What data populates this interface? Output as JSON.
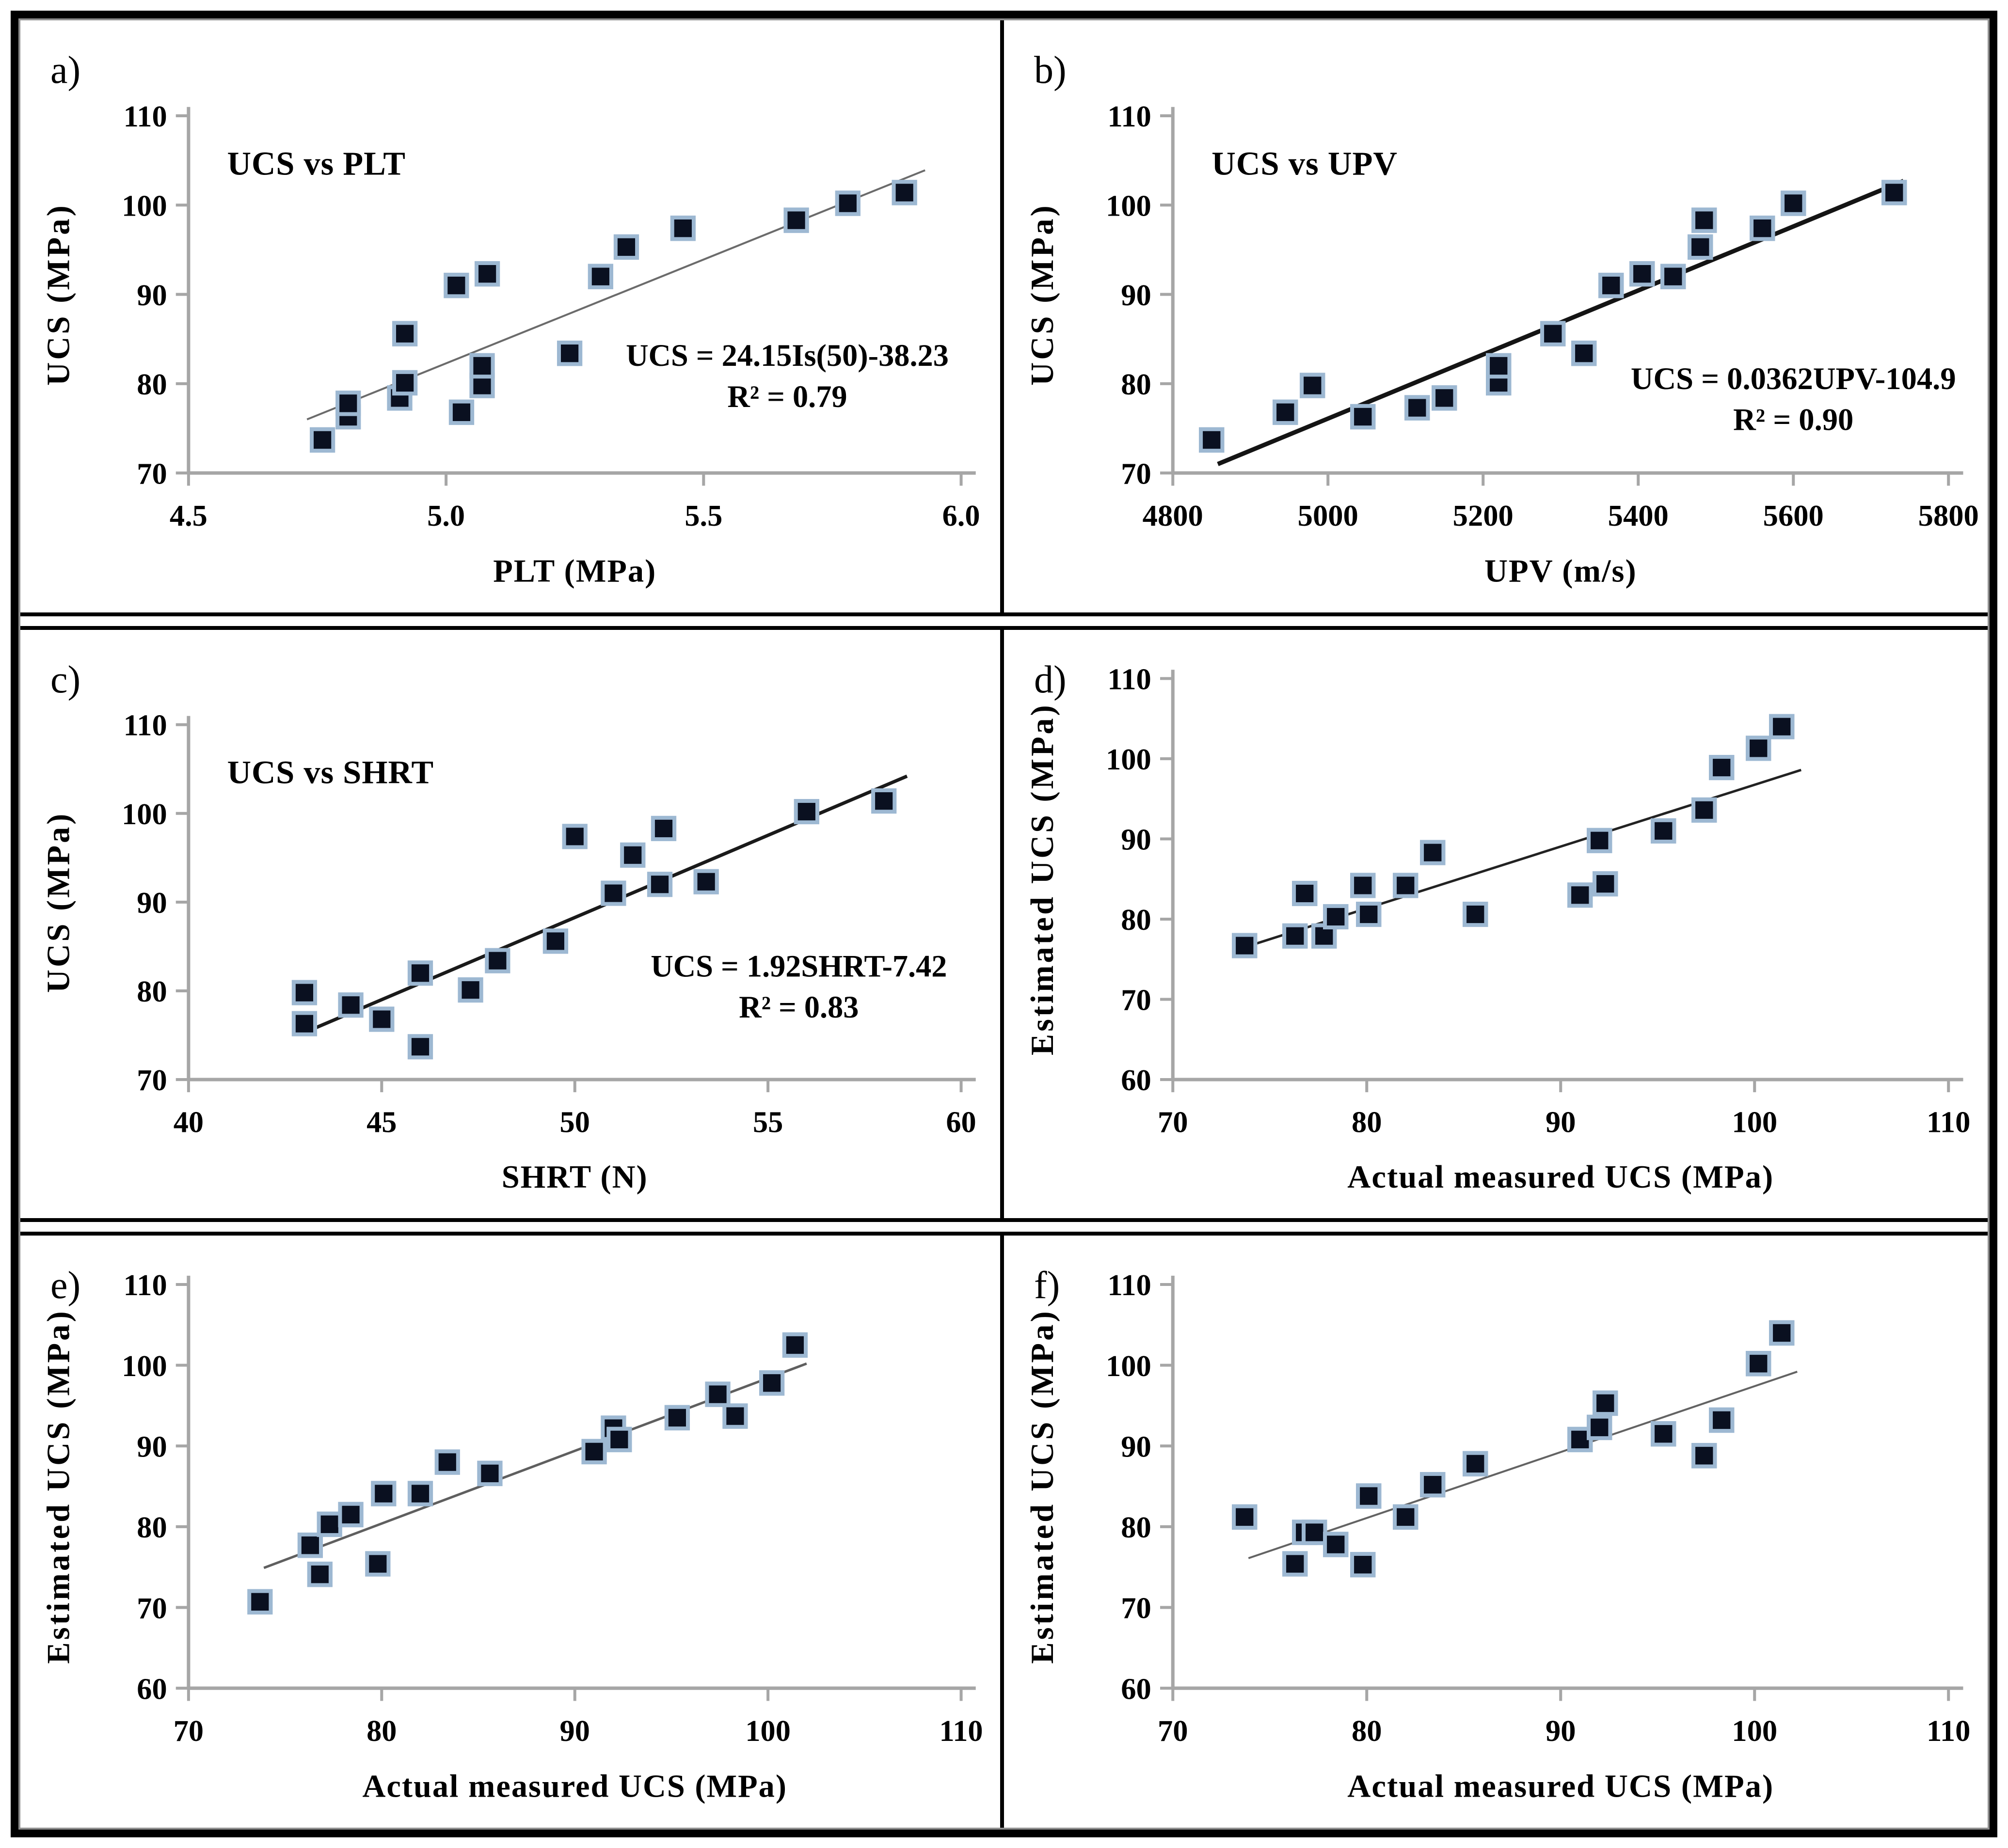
{
  "figure": {
    "outer_border_color": "#000000",
    "inner_frame_color": "#8f8f8f",
    "background": "#ffffff"
  },
  "style": {
    "marker_fill": "#0a1020",
    "marker_edge": "#9db8d2",
    "axis_color": "#a6a6a6",
    "text_color": "#000000"
  },
  "chart_data": [
    {
      "id": "a",
      "panel_label": "a)",
      "type": "scatter",
      "title": "UCS vs PLT",
      "xlabel": "PLT (MPa)",
      "ylabel": "UCS (MPa)",
      "xlim": [
        4.5,
        6.0
      ],
      "ylim": [
        70,
        110
      ],
      "xtick_vals": [
        4.5,
        5.0,
        5.5,
        6.0
      ],
      "xtick_labels": [
        "4.5",
        "5.0",
        "5.5",
        "6.0"
      ],
      "ytick_vals": [
        70,
        80,
        90,
        100,
        110
      ],
      "ytick_labels": [
        "70",
        "80",
        "90",
        "100",
        "110"
      ],
      "points": [
        [
          4.76,
          73.7
        ],
        [
          4.81,
          76.3
        ],
        [
          4.81,
          77.8
        ],
        [
          4.91,
          78.4
        ],
        [
          4.92,
          80.1
        ],
        [
          4.92,
          85.6
        ],
        [
          5.02,
          91.0
        ],
        [
          5.03,
          76.8
        ],
        [
          5.07,
          79.8
        ],
        [
          5.07,
          82.0
        ],
        [
          5.08,
          92.3
        ],
        [
          5.24,
          83.4
        ],
        [
          5.3,
          92.0
        ],
        [
          5.35,
          95.3
        ],
        [
          5.46,
          97.4
        ],
        [
          5.68,
          98.3
        ],
        [
          5.78,
          100.2
        ],
        [
          5.89,
          101.4
        ]
      ],
      "trendline": {
        "x1": 4.73,
        "y1": 76.0,
        "x2": 5.93,
        "y2": 103.9,
        "color": "#6b6b6b",
        "width": 4
      },
      "annotation": {
        "lines": [
          "UCS = 24.15Is(50)-38.23",
          "R² = 0.79"
        ],
        "fx": 0.775,
        "fy": 0.7
      }
    },
    {
      "id": "b",
      "panel_label": "b)",
      "type": "scatter",
      "title": "UCS vs UPV",
      "xlabel": "UPV (m/s)",
      "ylabel": "UCS (MPa)",
      "xlim": [
        4800,
        5800
      ],
      "ylim": [
        70,
        110
      ],
      "xtick_vals": [
        4800,
        5000,
        5200,
        5400,
        5600,
        5800
      ],
      "xtick_labels": [
        "4800",
        "5000",
        "5200",
        "5400",
        "5600",
        "5800"
      ],
      "ytick_vals": [
        70,
        80,
        90,
        100,
        110
      ],
      "ytick_labels": [
        "70",
        "80",
        "90",
        "100",
        "110"
      ],
      "points": [
        [
          4850,
          73.7
        ],
        [
          4945,
          76.8
        ],
        [
          4980,
          79.8
        ],
        [
          5045,
          76.3
        ],
        [
          5115,
          77.3
        ],
        [
          5150,
          78.4
        ],
        [
          5220,
          80.1
        ],
        [
          5220,
          82.0
        ],
        [
          5290,
          85.6
        ],
        [
          5330,
          83.4
        ],
        [
          5365,
          91.0
        ],
        [
          5405,
          92.3
        ],
        [
          5445,
          92.0
        ],
        [
          5480,
          95.3
        ],
        [
          5485,
          98.3
        ],
        [
          5560,
          97.4
        ],
        [
          5600,
          100.2
        ],
        [
          5730,
          101.4
        ]
      ],
      "trendline": {
        "x1": 4858,
        "y1": 71.0,
        "x2": 5742,
        "y2": 102.7,
        "color": "#141414",
        "width": 9
      },
      "annotation": {
        "lines": [
          "UCS = 0.0362UPV-104.9",
          "R² = 0.90"
        ],
        "fx": 0.8,
        "fy": 0.765
      }
    },
    {
      "id": "c",
      "panel_label": "c)",
      "type": "scatter",
      "title": "UCS vs SHRT",
      "xlabel": "SHRT (N)",
      "ylabel": "UCS (MPa)",
      "xlim": [
        40,
        60
      ],
      "ylim": [
        70,
        110
      ],
      "xtick_vals": [
        40,
        45,
        50,
        55,
        60
      ],
      "xtick_labels": [
        "40",
        "45",
        "50",
        "55",
        "60"
      ],
      "ytick_vals": [
        70,
        80,
        90,
        100,
        110
      ],
      "ytick_labels": [
        "70",
        "80",
        "90",
        "100",
        "110"
      ],
      "points": [
        [
          43.0,
          76.3
        ],
        [
          43.0,
          79.8
        ],
        [
          44.2,
          78.4
        ],
        [
          45.0,
          76.8
        ],
        [
          46.0,
          73.7
        ],
        [
          46.0,
          82.0
        ],
        [
          47.3,
          80.1
        ],
        [
          48.0,
          83.4
        ],
        [
          49.5,
          85.6
        ],
        [
          50.0,
          97.4
        ],
        [
          51.0,
          91.0
        ],
        [
          51.5,
          95.3
        ],
        [
          52.2,
          92.0
        ],
        [
          52.3,
          98.3
        ],
        [
          53.4,
          92.3
        ],
        [
          56.0,
          100.2
        ],
        [
          58.0,
          101.4
        ]
      ],
      "trendline": {
        "x1": 43.0,
        "y1": 75.3,
        "x2": 58.6,
        "y2": 104.2,
        "color": "#1a1a1a",
        "width": 7
      },
      "annotation": {
        "lines": [
          "UCS = 1.92SHRT-7.42",
          "R² = 0.83"
        ],
        "fx": 0.79,
        "fy": 0.71
      }
    },
    {
      "id": "d",
      "panel_label": "d)",
      "type": "scatter",
      "title": "",
      "xlabel": "Actual measured UCS (MPa)",
      "ylabel": "Estimated UCS (MPa)",
      "xlim": [
        70,
        110
      ],
      "ylim": [
        60,
        110
      ],
      "xtick_vals": [
        70,
        80,
        90,
        100,
        110
      ],
      "xtick_labels": [
        "70",
        "80",
        "90",
        "100",
        "110"
      ],
      "ytick_vals": [
        60,
        70,
        80,
        90,
        100,
        110
      ],
      "ytick_labels": [
        "60",
        "70",
        "80",
        "90",
        "100",
        "110"
      ],
      "points": [
        [
          73.7,
          76.7
        ],
        [
          76.3,
          77.9
        ],
        [
          76.8,
          83.2
        ],
        [
          77.8,
          77.9
        ],
        [
          78.4,
          80.3
        ],
        [
          79.8,
          84.2
        ],
        [
          80.1,
          80.6
        ],
        [
          82.0,
          84.2
        ],
        [
          83.4,
          88.3
        ],
        [
          85.6,
          80.6
        ],
        [
          91.0,
          83.0
        ],
        [
          92.0,
          89.8
        ],
        [
          92.3,
          84.4
        ],
        [
          95.3,
          91.0
        ],
        [
          97.4,
          93.6
        ],
        [
          98.3,
          98.9
        ],
        [
          100.2,
          101.3
        ],
        [
          101.4,
          104.0
        ]
      ],
      "trendline": {
        "x1": 74.1,
        "y1": 76.8,
        "x2": 102.4,
        "y2": 98.6,
        "color": "#222222",
        "width": 5
      },
      "annotation": null
    },
    {
      "id": "e",
      "panel_label": "e)",
      "type": "scatter",
      "title": "",
      "xlabel": "Actual measured UCS (MPa)",
      "ylabel": "Estimated UCS (MPa)",
      "xlim": [
        70,
        110
      ],
      "ylim": [
        60,
        110
      ],
      "xtick_vals": [
        70,
        80,
        90,
        100,
        110
      ],
      "xtick_labels": [
        "70",
        "80",
        "90",
        "100",
        "110"
      ],
      "ytick_vals": [
        60,
        70,
        80,
        90,
        100,
        110
      ],
      "ytick_labels": [
        "60",
        "70",
        "80",
        "90",
        "100",
        "110"
      ],
      "points": [
        [
          73.7,
          70.7
        ],
        [
          76.3,
          77.7
        ],
        [
          76.8,
          74.1
        ],
        [
          77.3,
          80.3
        ],
        [
          78.4,
          81.5
        ],
        [
          79.8,
          75.4
        ],
        [
          80.1,
          84.1
        ],
        [
          82.0,
          84.1
        ],
        [
          83.4,
          88.0
        ],
        [
          85.6,
          86.6
        ],
        [
          91.0,
          89.3
        ],
        [
          92.0,
          92.2
        ],
        [
          92.3,
          90.8
        ],
        [
          95.3,
          93.5
        ],
        [
          97.4,
          96.4
        ],
        [
          98.3,
          93.7
        ],
        [
          100.2,
          97.8
        ],
        [
          101.4,
          102.5
        ]
      ],
      "trendline": {
        "x1": 73.9,
        "y1": 74.9,
        "x2": 102.0,
        "y2": 100.2,
        "color": "#5f5f5f",
        "width": 5
      },
      "annotation": null
    },
    {
      "id": "f",
      "panel_label": "f)",
      "type": "scatter",
      "title": "",
      "xlabel": "Actual measured UCS (MPa)",
      "ylabel": "Estimated UCS (MPa)",
      "xlim": [
        70,
        110
      ],
      "ylim": [
        60,
        110
      ],
      "xtick_vals": [
        70,
        80,
        90,
        100,
        110
      ],
      "xtick_labels": [
        "70",
        "80",
        "90",
        "100",
        "110"
      ],
      "ytick_vals": [
        60,
        70,
        80,
        90,
        100,
        110
      ],
      "ytick_labels": [
        "60",
        "70",
        "80",
        "90",
        "100",
        "110"
      ],
      "points": [
        [
          73.7,
          81.2
        ],
        [
          76.3,
          75.4
        ],
        [
          76.8,
          79.3
        ],
        [
          77.3,
          79.3
        ],
        [
          78.4,
          77.8
        ],
        [
          79.8,
          75.3
        ],
        [
          80.1,
          83.8
        ],
        [
          82.0,
          81.2
        ],
        [
          83.4,
          85.2
        ],
        [
          85.6,
          87.8
        ],
        [
          91.0,
          90.8
        ],
        [
          92.0,
          92.3
        ],
        [
          92.3,
          95.3
        ],
        [
          95.3,
          91.5
        ],
        [
          97.4,
          88.8
        ],
        [
          98.3,
          93.2
        ],
        [
          100.2,
          100.2
        ],
        [
          101.4,
          104.0
        ]
      ],
      "trendline": {
        "x1": 73.9,
        "y1": 76.1,
        "x2": 102.2,
        "y2": 99.2,
        "color": "#636363",
        "width": 4
      },
      "annotation": null
    }
  ]
}
